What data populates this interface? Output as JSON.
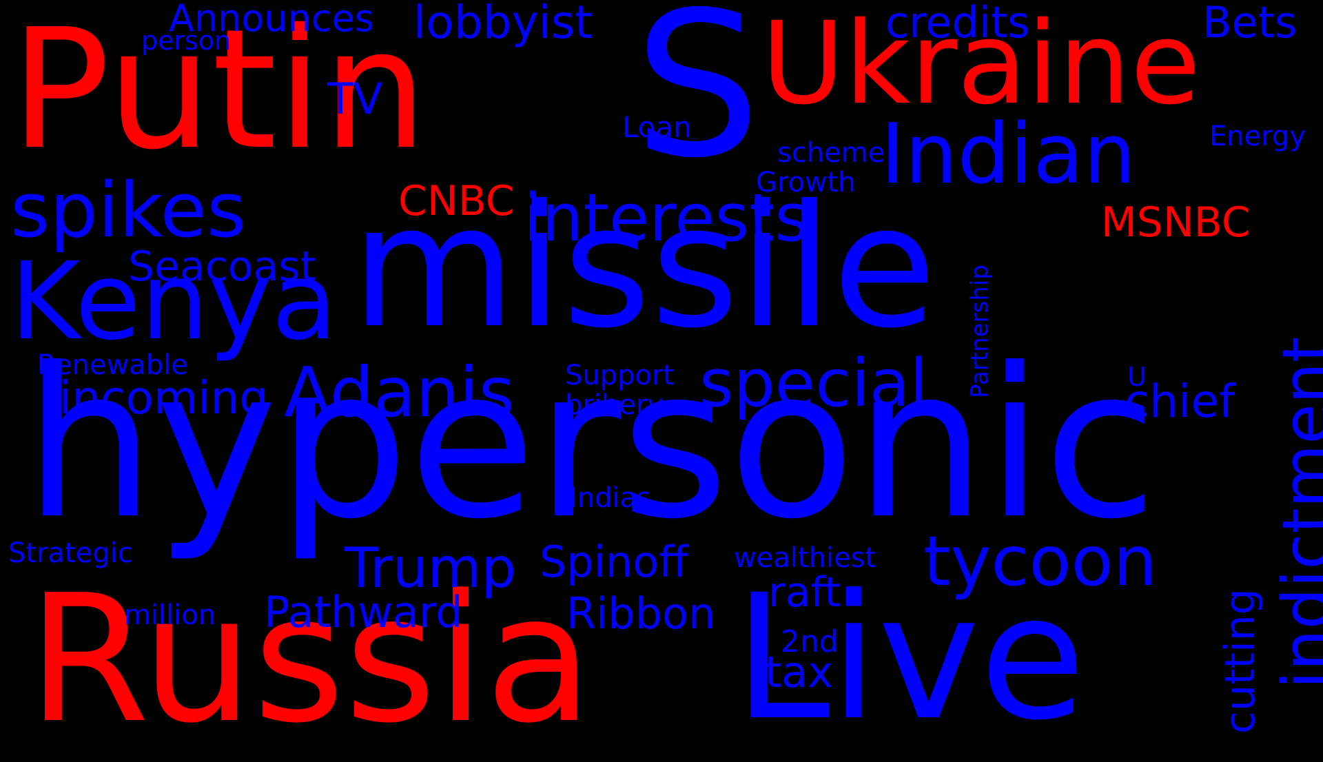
{
  "colors": {
    "background": "#000000",
    "red": "#ff0000",
    "blue": "#0000ff"
  },
  "words": [
    {
      "key": "putin",
      "text": "Putin",
      "color": "red"
    },
    {
      "key": "s",
      "text": "S",
      "color": "blue"
    },
    {
      "key": "ukraine",
      "text": "Ukraine",
      "color": "red"
    },
    {
      "key": "missile",
      "text": "missile",
      "color": "blue"
    },
    {
      "key": "hypersonic",
      "text": "hypersonic",
      "color": "blue"
    },
    {
      "key": "russia",
      "text": "Russia",
      "color": "red"
    },
    {
      "key": "live",
      "text": "Live",
      "color": "blue"
    },
    {
      "key": "kenya",
      "text": "Kenya",
      "color": "blue"
    },
    {
      "key": "spikes",
      "text": "spikes",
      "color": "blue"
    },
    {
      "key": "indian",
      "text": "Indian",
      "color": "blue"
    },
    {
      "key": "interests",
      "text": "interests",
      "color": "blue"
    },
    {
      "key": "adanis",
      "text": "Adanis",
      "color": "blue"
    },
    {
      "key": "special",
      "text": "special",
      "color": "blue"
    },
    {
      "key": "tycoon",
      "text": "tycoon",
      "color": "blue"
    },
    {
      "key": "indictment",
      "text": "indictment",
      "color": "blue"
    },
    {
      "key": "trump",
      "text": "Trump",
      "color": "blue"
    },
    {
      "key": "lobbyist",
      "text": "lobbyist",
      "color": "blue"
    },
    {
      "key": "credits",
      "text": "credits",
      "color": "blue"
    },
    {
      "key": "bets",
      "text": "Bets",
      "color": "blue"
    },
    {
      "key": "announces",
      "text": "Announces",
      "color": "blue"
    },
    {
      "key": "person",
      "text": "person",
      "color": "blue"
    },
    {
      "key": "tv",
      "text": "TV",
      "color": "blue"
    },
    {
      "key": "loan",
      "text": "Loan",
      "color": "blue"
    },
    {
      "key": "scheme",
      "text": "scheme",
      "color": "blue"
    },
    {
      "key": "energy",
      "text": "Energy",
      "color": "blue"
    },
    {
      "key": "growth",
      "text": "Growth",
      "color": "blue"
    },
    {
      "key": "cnbc",
      "text": "CNBC",
      "color": "red"
    },
    {
      "key": "msnbc",
      "text": "MSNBC",
      "color": "red"
    },
    {
      "key": "seacoast",
      "text": "Seacoast",
      "color": "blue"
    },
    {
      "key": "partnership",
      "text": "Partnership",
      "color": "blue"
    },
    {
      "key": "renewable",
      "text": "Renewable",
      "color": "blue"
    },
    {
      "key": "incoming",
      "text": "incoming",
      "color": "blue"
    },
    {
      "key": "support",
      "text": "Support",
      "color": "blue"
    },
    {
      "key": "bribery",
      "text": "bribery",
      "color": "blue"
    },
    {
      "key": "u",
      "text": "U",
      "color": "blue"
    },
    {
      "key": "chief",
      "text": "chief",
      "color": "blue"
    },
    {
      "key": "indias",
      "text": "Indias",
      "color": "blue"
    },
    {
      "key": "strategic",
      "text": "Strategic",
      "color": "blue"
    },
    {
      "key": "spinoff",
      "text": "Spinoff",
      "color": "blue"
    },
    {
      "key": "wealthiest",
      "text": "wealthiest",
      "color": "blue"
    },
    {
      "key": "raft",
      "text": "raft",
      "color": "blue"
    },
    {
      "key": "pathward",
      "text": "Pathward",
      "color": "blue"
    },
    {
      "key": "ribbon",
      "text": "Ribbon",
      "color": "blue"
    },
    {
      "key": "million",
      "text": "million",
      "color": "blue"
    },
    {
      "key": "cutting",
      "text": "cutting",
      "color": "blue"
    },
    {
      "key": "second",
      "text": "2nd",
      "color": "blue"
    },
    {
      "key": "tax",
      "text": "tax",
      "color": "blue"
    }
  ]
}
